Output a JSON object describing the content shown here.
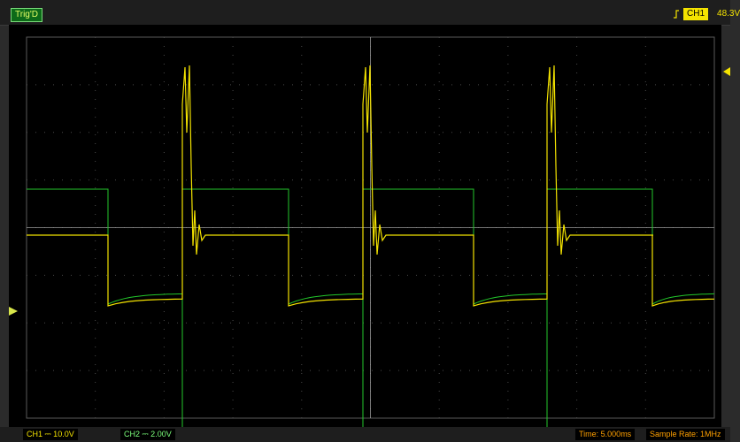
{
  "header": {
    "trigger_status": "Trig'D",
    "channel": "CH1",
    "trigger_level": "48.3V"
  },
  "footer": {
    "ch1_scale": "CH1 ⎓ 10.0V",
    "ch2_scale": "CH2 ⎓ 2.00V",
    "time_base": "Time: 5.000ms",
    "sample_rate": "Sample Rate: 1MHz"
  },
  "colors": {
    "ch1": "#f4e300",
    "ch2": "#23c92b",
    "grid": "#4a4a4a",
    "screen_bg": "#000000"
  },
  "chart_data": {
    "type": "line",
    "series": [
      {
        "name": "CH1",
        "color": "#f4e300"
      },
      {
        "name": "CH2",
        "color": "#23c92b"
      }
    ]
  }
}
